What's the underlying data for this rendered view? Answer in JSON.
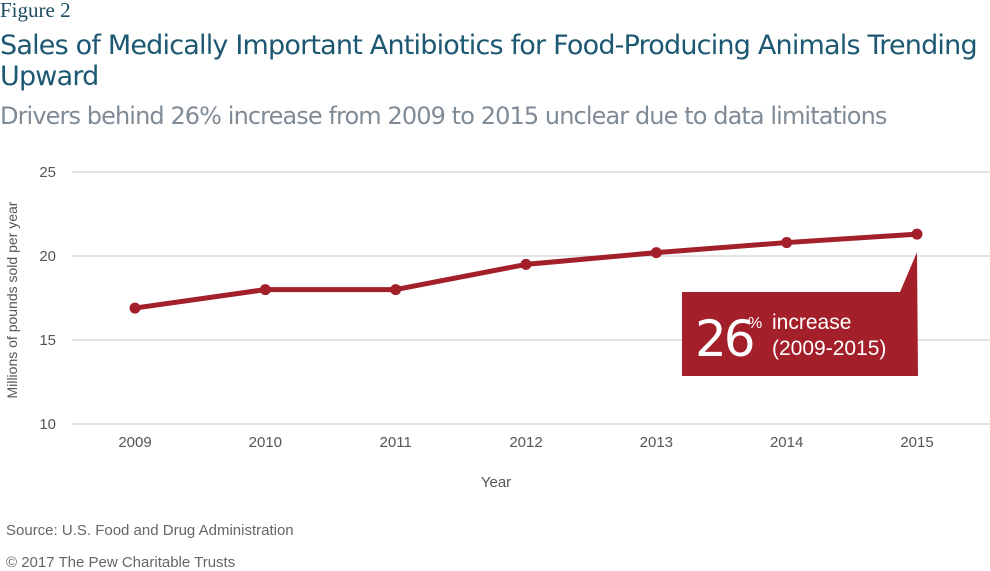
{
  "figure_label": "Figure 2",
  "chart_data": {
    "type": "line",
    "title": "Sales of Medically Important Antibiotics for Food-Producing Animals Trending Upward",
    "subtitle": "Drivers behind 26% increase from 2009 to 2015 unclear due to data limitations",
    "xlabel": "Year",
    "ylabel": "Millions of pounds sold per year",
    "categories": [
      "2009",
      "2010",
      "2011",
      "2012",
      "2013",
      "2014",
      "2015"
    ],
    "values": [
      16.9,
      18.0,
      18.0,
      19.5,
      20.2,
      20.8,
      21.3
    ],
    "ylim": [
      10,
      25
    ],
    "yticks": [
      10,
      15,
      20,
      25
    ],
    "grid": true,
    "line_color": "#a31f2a",
    "annotation": {
      "big": "26",
      "percent": "%",
      "word": "increase",
      "range": "(2009-2015)",
      "color": "#a31f2a"
    }
  },
  "source": "Source: U.S. Food and Drug Administration",
  "copyright": "© 2017 The Pew Charitable Trusts"
}
